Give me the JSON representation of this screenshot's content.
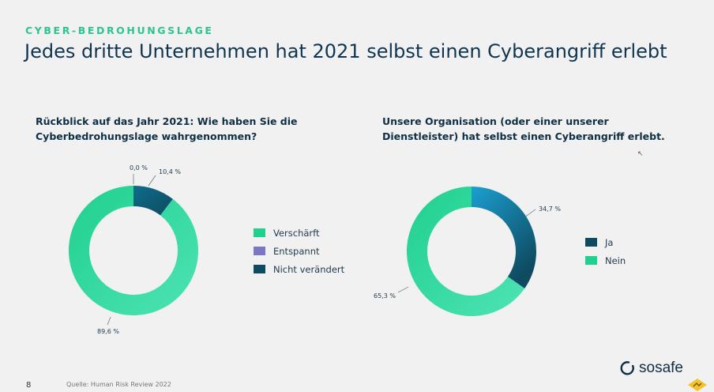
{
  "header": {
    "eyebrow": "CYBER-BEDROHUNGSLAGE",
    "title": "Jedes dritte Unternehmen hat 2021 selbst einen Cyberangriff erlebt"
  },
  "colors": {
    "accent": "#2ec48f",
    "navy": "#0f3551",
    "green": "#1fd08e",
    "mint": "#4ee3b5",
    "purple": "#7b78c3",
    "teal_dark": "#0e4a60",
    "teal_mid": "#0f6d8b",
    "sky": "#1b9fd0"
  },
  "chart_data": [
    {
      "type": "pie",
      "title": "Rückblick auf das Jahr 2021: Wie haben Sie die Cyberbedrohungslage wahrgenommen?",
      "title_lines": [
        "Rückblick auf das Jahr 2021: Wie haben Sie die",
        "Cyberbedrohungslage wahrgenommen?"
      ],
      "categories": [
        "Verschärft",
        "Entspannt",
        "Nicht verändert"
      ],
      "values": [
        89.6,
        0.0,
        10.4
      ],
      "value_labels": [
        "89,6 %",
        "0,0 %",
        "10,4 %"
      ],
      "legend_position": "right"
    },
    {
      "type": "pie",
      "title": "Unsere Organisation (oder einer unserer Dienstleister) hat selbst einen Cyberangriff erlebt.",
      "title_lines": [
        "Unsere Organisation (oder einer unserer",
        "Dienstleister) hat selbst einen Cyberangriff erlebt."
      ],
      "categories": [
        "Ja",
        "Nein"
      ],
      "values": [
        34.7,
        65.3
      ],
      "value_labels": [
        "34,7 %",
        "65,3 %"
      ],
      "legend_position": "right"
    }
  ],
  "footer": {
    "page_number": "8",
    "source": "Quelle: Human Risk Review 2022",
    "brand": "sosafe"
  }
}
